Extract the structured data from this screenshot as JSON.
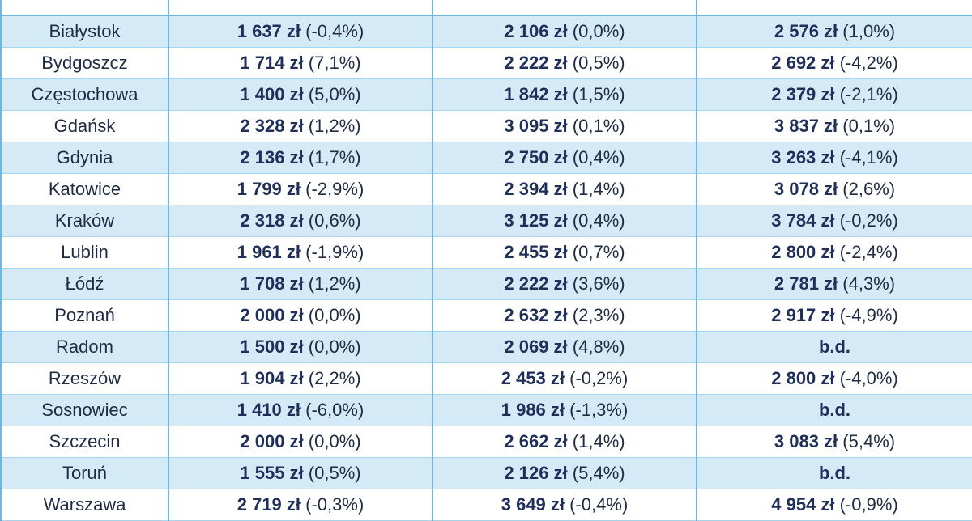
{
  "table": {
    "rows": [
      {
        "city": "Białystok",
        "c1": {
          "amount": "1 637 zł",
          "change": "(-0,4%)"
        },
        "c2": {
          "amount": "2 106 zł",
          "change": "(0,0%)"
        },
        "c3": {
          "amount": "2 576 zł",
          "change": "(1,0%)"
        }
      },
      {
        "city": "Bydgoszcz",
        "c1": {
          "amount": "1 714 zł",
          "change": "(7,1%)"
        },
        "c2": {
          "amount": "2 222 zł",
          "change": "(0,5%)"
        },
        "c3": {
          "amount": "2 692 zł",
          "change": "(-4,2%)"
        }
      },
      {
        "city": "Częstochowa",
        "c1": {
          "amount": "1 400 zł",
          "change": "(5,0%)"
        },
        "c2": {
          "amount": "1 842 zł",
          "change": "(1,5%)"
        },
        "c3": {
          "amount": "2 379 zł",
          "change": "(-2,1%)"
        }
      },
      {
        "city": "Gdańsk",
        "c1": {
          "amount": "2 328 zł",
          "change": "(1,2%)"
        },
        "c2": {
          "amount": "3 095 zł",
          "change": "(0,1%)"
        },
        "c3": {
          "amount": "3 837 zł",
          "change": "(0,1%)"
        }
      },
      {
        "city": "Gdynia",
        "c1": {
          "amount": "2 136 zł",
          "change": "(1,7%)"
        },
        "c2": {
          "amount": "2 750 zł",
          "change": "(0,4%)"
        },
        "c3": {
          "amount": "3 263 zł",
          "change": "(-4,1%)"
        }
      },
      {
        "city": "Katowice",
        "c1": {
          "amount": "1 799 zł",
          "change": "(-2,9%)"
        },
        "c2": {
          "amount": "2 394 zł",
          "change": "(1,4%)"
        },
        "c3": {
          "amount": "3 078 zł",
          "change": "(2,6%)"
        }
      },
      {
        "city": "Kraków",
        "c1": {
          "amount": "2 318 zł",
          "change": "(0,6%)"
        },
        "c2": {
          "amount": "3 125 zł",
          "change": "(0,4%)"
        },
        "c3": {
          "amount": "3 784 zł",
          "change": "(-0,2%)"
        }
      },
      {
        "city": "Lublin",
        "c1": {
          "amount": "1 961 zł",
          "change": "(-1,9%)"
        },
        "c2": {
          "amount": "2 455 zł",
          "change": "(0,7%)"
        },
        "c3": {
          "amount": "2 800 zł",
          "change": "(-2,4%)"
        }
      },
      {
        "city": "Łódź",
        "c1": {
          "amount": "1 708 zł",
          "change": "(1,2%)"
        },
        "c2": {
          "amount": "2 222 zł",
          "change": "(3,6%)"
        },
        "c3": {
          "amount": "2 781 zł",
          "change": "(4,3%)"
        }
      },
      {
        "city": "Poznań",
        "c1": {
          "amount": "2 000 zł",
          "change": "(0,0%)"
        },
        "c2": {
          "amount": "2 632 zł",
          "change": "(2,3%)"
        },
        "c3": {
          "amount": "2 917 zł",
          "change": "(-4,9%)"
        }
      },
      {
        "city": "Radom",
        "c1": {
          "amount": "1 500 zł",
          "change": "(0,0%)"
        },
        "c2": {
          "amount": "2 069 zł",
          "change": "(4,8%)"
        },
        "c3": {
          "amount": "b.d.",
          "change": ""
        }
      },
      {
        "city": "Rzeszów",
        "c1": {
          "amount": "1 904 zł",
          "change": "(2,2%)"
        },
        "c2": {
          "amount": "2 453 zł",
          "change": "(-0,2%)"
        },
        "c3": {
          "amount": "2 800 zł",
          "change": "(-4,0%)"
        }
      },
      {
        "city": "Sosnowiec",
        "c1": {
          "amount": "1 410 zł",
          "change": "(-6,0%)"
        },
        "c2": {
          "amount": "1 986 zł",
          "change": "(-1,3%)"
        },
        "c3": {
          "amount": "b.d.",
          "change": ""
        }
      },
      {
        "city": "Szczecin",
        "c1": {
          "amount": "2 000 zł",
          "change": "(0,0%)"
        },
        "c2": {
          "amount": "2 662 zł",
          "change": "(1,4%)"
        },
        "c3": {
          "amount": "3 083 zł",
          "change": "(5,4%)"
        }
      },
      {
        "city": "Toruń",
        "c1": {
          "amount": "1 555 zł",
          "change": "(0,5%)"
        },
        "c2": {
          "amount": "2 126 zł",
          "change": "(5,4%)"
        },
        "c3": {
          "amount": "b.d.",
          "change": ""
        }
      },
      {
        "city": "Warszawa",
        "c1": {
          "amount": "2 719 zł",
          "change": "(-0,3%)"
        },
        "c2": {
          "amount": "3 649 zł",
          "change": "(-0,4%)"
        },
        "c3": {
          "amount": "4 954 zł",
          "change": "(-0,9%)"
        }
      }
    ]
  },
  "colors": {
    "row_shade": "#d4eaf7",
    "border": "#6cb8de",
    "text": "#1f2a44"
  }
}
